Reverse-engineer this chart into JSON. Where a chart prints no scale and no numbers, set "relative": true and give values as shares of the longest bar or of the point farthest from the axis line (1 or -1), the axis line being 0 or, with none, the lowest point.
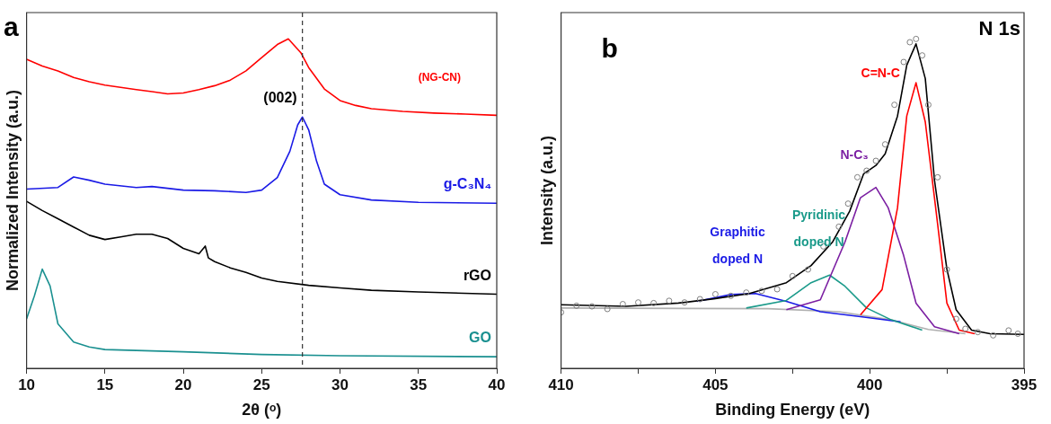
{
  "chart_data": [
    {
      "type": "line",
      "title": "a",
      "xlabel": "2θ (ᵒ)",
      "ylabel": "Normalized Intensity (a.u.)",
      "relative": true,
      "xlim": [
        10,
        40
      ],
      "xticks": [
        10,
        15,
        20,
        25,
        30,
        35,
        40
      ],
      "legend": false,
      "grid": false,
      "ref_lines": [
        {
          "axis": "x",
          "value": 27.6,
          "color": "#333333",
          "line_style": "dashed"
        }
      ],
      "annotations": [
        "(002)"
      ],
      "series": [
        {
          "name": "(NG-CN)",
          "color": "#ff0000",
          "x": [
            10,
            11,
            12,
            13,
            14,
            15,
            16,
            17,
            18,
            19,
            20,
            21,
            22,
            23,
            24,
            25,
            26,
            26.7,
            27.5,
            28,
            29,
            30,
            31,
            32,
            34,
            36,
            38,
            40
          ],
          "values": [
            0.938,
            0.918,
            0.903,
            0.883,
            0.87,
            0.86,
            0.853,
            0.846,
            0.84,
            0.833,
            0.836,
            0.846,
            0.858,
            0.875,
            0.903,
            0.943,
            0.983,
            1.0,
            0.958,
            0.913,
            0.848,
            0.813,
            0.798,
            0.788,
            0.78,
            0.775,
            0.772,
            0.768
          ]
        },
        {
          "name": "g-C₃N₄",
          "color": "#1a1ae6",
          "x": [
            10,
            12,
            13,
            14,
            15,
            17,
            18,
            20,
            22,
            24,
            25,
            26,
            26.8,
            27.3,
            27.6,
            28,
            28.5,
            29,
            30,
            32,
            35,
            40
          ],
          "values": [
            0.544,
            0.549,
            0.581,
            0.571,
            0.559,
            0.549,
            0.552,
            0.541,
            0.539,
            0.534,
            0.541,
            0.579,
            0.659,
            0.739,
            0.763,
            0.724,
            0.629,
            0.559,
            0.527,
            0.511,
            0.504,
            0.501
          ]
        },
        {
          "name": "rGO",
          "color": "#000000",
          "x": [
            10,
            11,
            12,
            13,
            14,
            15,
            16,
            17,
            18,
            19,
            20,
            21,
            21.4,
            21.6,
            22,
            23,
            24,
            25,
            26,
            28,
            30,
            32,
            35,
            40
          ],
          "values": [
            0.507,
            0.479,
            0.454,
            0.429,
            0.404,
            0.391,
            0.399,
            0.407,
            0.407,
            0.394,
            0.364,
            0.348,
            0.371,
            0.335,
            0.324,
            0.305,
            0.291,
            0.274,
            0.264,
            0.252,
            0.244,
            0.237,
            0.232,
            0.225
          ]
        },
        {
          "name": "GO",
          "color": "#1a9090",
          "x": [
            10,
            10.5,
            11,
            11.5,
            12,
            13,
            14,
            15,
            20,
            25,
            30,
            40
          ],
          "values": [
            0.15,
            0.22,
            0.301,
            0.25,
            0.135,
            0.08,
            0.065,
            0.057,
            0.05,
            0.042,
            0.038,
            0.035
          ]
        }
      ]
    },
    {
      "type": "line",
      "title": "b",
      "xlabel": "Binding Energy (eV)",
      "ylabel": "Intensity (a.u.)",
      "relative": true,
      "xlim": [
        410,
        395
      ],
      "xticks": [
        410,
        {
          "value": 407.5,
          "label": null
        },
        405,
        {
          "value": 402.5,
          "label": null
        },
        400,
        {
          "value": 397.5,
          "label": null
        },
        395
      ],
      "legend": false,
      "grid": false,
      "annotations": [
        "N 1s"
      ],
      "series": [
        {
          "type": "scatter",
          "marker": "circle",
          "color": "#808080",
          "x": [
            410,
            409.5,
            409,
            408.5,
            408,
            407.5,
            407,
            406.5,
            406,
            405.5,
            405,
            404.5,
            404,
            403.5,
            403,
            402.5,
            402,
            401.5,
            401,
            400.7,
            400.4,
            400.1,
            399.8,
            399.5,
            399.2,
            398.9,
            398.7,
            398.5,
            398.3,
            398.1,
            397.8,
            397.5,
            397.2,
            396.9,
            396.5,
            396,
            395.5,
            395.2
          ],
          "values": [
            0.17,
            0.19,
            0.188,
            0.18,
            0.195,
            0.2,
            0.198,
            0.205,
            0.2,
            0.21,
            0.225,
            0.22,
            0.23,
            0.235,
            0.24,
            0.28,
            0.3,
            0.37,
            0.43,
            0.5,
            0.58,
            0.6,
            0.63,
            0.68,
            0.8,
            0.93,
            0.99,
            1.0,
            0.95,
            0.8,
            0.58,
            0.3,
            0.15,
            0.12,
            0.11,
            0.1,
            0.115,
            0.105
          ]
        },
        {
          "color": "#000000",
          "x": [
            410,
            407.9,
            406.2,
            405.05,
            403.9,
            402.7,
            401.9,
            401.2,
            400.65,
            400.2,
            399.8,
            399.5,
            399.1,
            398.8,
            398.5,
            398.2,
            397.9,
            397.5,
            397.2,
            396.7,
            396.1,
            395
          ],
          "values": [
            0.193,
            0.188,
            0.198,
            0.211,
            0.227,
            0.26,
            0.312,
            0.384,
            0.477,
            0.59,
            0.616,
            0.651,
            0.766,
            0.92,
            0.985,
            0.88,
            0.57,
            0.301,
            0.178,
            0.116,
            0.105,
            0.103
          ]
        },
        {
          "name": "C=N-C",
          "color": "#ff0000",
          "x": [
            400.3,
            399.6,
            399.1,
            398.8,
            398.5,
            398.2,
            397.8,
            397.5,
            397.1,
            396.6
          ],
          "values": [
            0.162,
            0.239,
            0.487,
            0.766,
            0.867,
            0.748,
            0.438,
            0.198,
            0.116,
            0.105
          ]
        },
        {
          "name": "N-C₃",
          "color": "#7b1fa2",
          "x": [
            402.7,
            401.6,
            400.8,
            400.3,
            399.8,
            399.4,
            398.9,
            398.5,
            397.9,
            397.1
          ],
          "values": [
            0.178,
            0.208,
            0.384,
            0.518,
            0.549,
            0.487,
            0.342,
            0.198,
            0.126,
            0.105
          ]
        },
        {
          "name": "Pyridinic doped N",
          "color": "#1a9a8a",
          "x": [
            404.0,
            402.7,
            401.9,
            401.3,
            400.8,
            400.1,
            399.3,
            398.3
          ],
          "values": [
            0.183,
            0.206,
            0.26,
            0.283,
            0.249,
            0.183,
            0.147,
            0.116
          ]
        },
        {
          "name": "Graphitic doped N",
          "color": "#1a1ae6",
          "x": [
            405.6,
            404.5,
            403.7,
            402.7,
            401.6,
            400.3,
            399.0
          ],
          "values": [
            0.203,
            0.224,
            0.227,
            0.203,
            0.172,
            0.157,
            0.141
          ]
        },
        {
          "color": "#b0b0b0",
          "x": [
            410,
            403.3,
            401.0,
            399.3,
            398.1,
            396.9
          ],
          "values": [
            0.183,
            0.181,
            0.172,
            0.147,
            0.118,
            0.105
          ]
        }
      ]
    }
  ]
}
